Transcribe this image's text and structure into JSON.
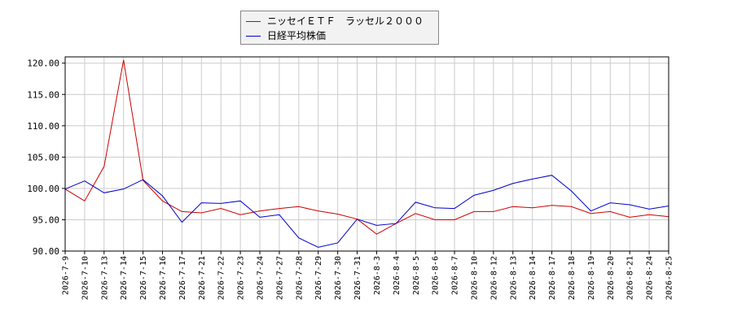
{
  "chart_data": {
    "type": "line",
    "title": "",
    "xlabel": "",
    "ylabel": "",
    "x": [
      "2026-7-9",
      "2026-7-10",
      "2026-7-13",
      "2026-7-14",
      "2026-7-15",
      "2026-7-16",
      "2026-7-17",
      "2026-7-21",
      "2026-7-22",
      "2026-7-23",
      "2026-7-24",
      "2026-7-27",
      "2026-7-28",
      "2026-7-29",
      "2026-7-30",
      "2026-7-31",
      "2026-8-3",
      "2026-8-4",
      "2026-8-5",
      "2026-8-6",
      "2026-8-7",
      "2026-8-10",
      "2026-8-12",
      "2026-8-13",
      "2026-8-14",
      "2026-8-17",
      "2026-8-18",
      "2026-8-19",
      "2026-8-20",
      "2026-8-21",
      "2026-8-24",
      "2026-8-25"
    ],
    "ylim": [
      90,
      121
    ],
    "yticks": [
      "90.00",
      "95.00",
      "100.00",
      "105.00",
      "110.00",
      "115.00",
      "120.00"
    ],
    "grid": true,
    "legend_position": "top-center",
    "series": [
      {
        "name": "ニッセイＥＴＦ　ラッセル２０００",
        "color": "#cc0000",
        "values": [
          99.9,
          98.0,
          103.5,
          120.5,
          101.3,
          98.0,
          96.3,
          96.1,
          96.8,
          95.8,
          96.4,
          96.8,
          97.1,
          96.4,
          95.9,
          95.1,
          92.7,
          94.4,
          96.0,
          95.0,
          95.0,
          96.3,
          96.3,
          97.1,
          96.9,
          97.3,
          97.1,
          96.0,
          96.3,
          95.4,
          95.8,
          95.5
        ]
      },
      {
        "name": "日経平均株価",
        "color": "#0000cc",
        "values": [
          99.9,
          101.2,
          99.3,
          99.9,
          101.4,
          98.8,
          94.6,
          97.7,
          97.6,
          98.0,
          95.4,
          95.8,
          92.1,
          90.6,
          91.3,
          95.1,
          94.1,
          94.4,
          97.8,
          96.9,
          96.8,
          98.9,
          99.7,
          100.8,
          101.5,
          102.1,
          99.6,
          96.4,
          97.7,
          97.4,
          96.7,
          97.2
        ]
      }
    ]
  }
}
